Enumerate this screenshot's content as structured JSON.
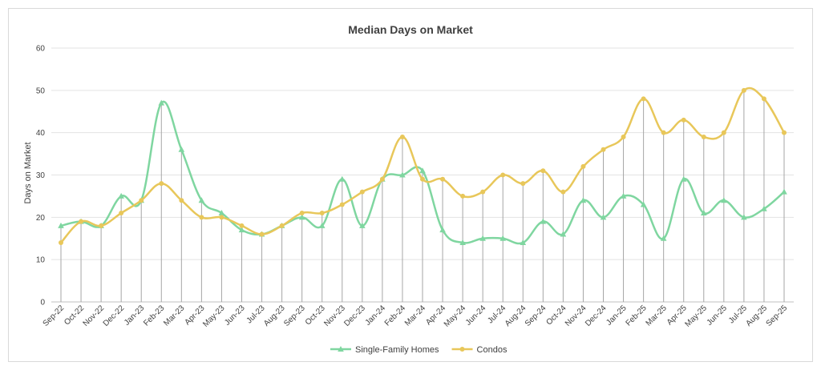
{
  "chart_data": {
    "type": "line",
    "title": "Median Days on Market",
    "xlabel": "",
    "ylabel": "Days on Market",
    "ylim": [
      0,
      60
    ],
    "yticks": [
      0,
      10,
      20,
      30,
      40,
      50,
      60
    ],
    "grid": "horizontal",
    "legend_position": "bottom",
    "categories": [
      "Sep-22",
      "Oct-22",
      "Nov-22",
      "Dec-22",
      "Jan-23",
      "Feb-23",
      "Mar-23",
      "Apr-23",
      "May-23",
      "Jun-23",
      "Jul-23",
      "Aug-23",
      "Sep-23",
      "Oct-23",
      "Nov-23",
      "Dec-23",
      "Jan-24",
      "Feb-24",
      "Mar-24",
      "Apr-24",
      "May-24",
      "Jun-24",
      "Jul-24",
      "Aug-24",
      "Sep-24",
      "Oct-24",
      "Nov-24",
      "Dec-24",
      "Jan-25",
      "Feb-25",
      "Mar-25",
      "Apr-25",
      "May-25",
      "Jun-25",
      "Jul-25",
      "Aug-25",
      "Sep-25"
    ],
    "series": [
      {
        "name": "Single-Family Homes",
        "color": "#7fd6a0",
        "marker": "triangle",
        "values": [
          18,
          19,
          18,
          25,
          24,
          47,
          36,
          24,
          21,
          17,
          16,
          18,
          20,
          18,
          29,
          18,
          29,
          30,
          31,
          17,
          14,
          15,
          15,
          14,
          19,
          16,
          24,
          20,
          25,
          23,
          15,
          29,
          21,
          24,
          20,
          22,
          26
        ]
      },
      {
        "name": "Condos",
        "color": "#e8c75a",
        "marker": "circle",
        "values": [
          14,
          19,
          18,
          21,
          24,
          28,
          24,
          20,
          20,
          18,
          16,
          18,
          21,
          21,
          23,
          26,
          29,
          39,
          29,
          29,
          25,
          26,
          30,
          28,
          31,
          26,
          32,
          36,
          39,
          48,
          40,
          43,
          39,
          40,
          50,
          48,
          40
        ]
      }
    ]
  }
}
